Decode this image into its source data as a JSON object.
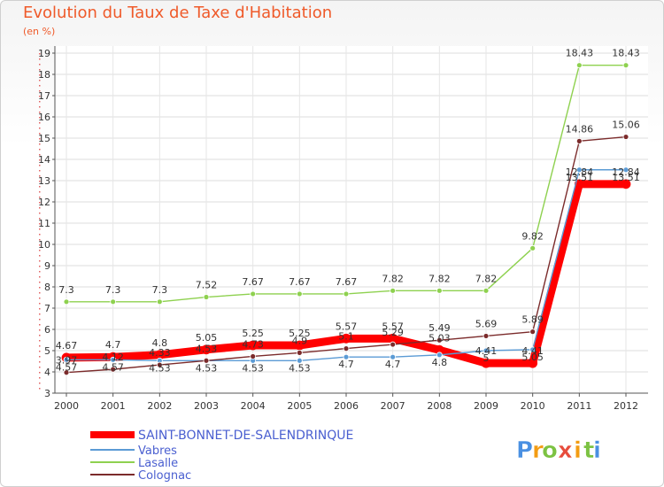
{
  "chart_data": {
    "type": "line",
    "title": "Evolution du Taux de Taxe d'Habitation",
    "subtitle": "(en %)",
    "xlabel": "",
    "ylabel": "",
    "ylim": [
      3,
      19
    ],
    "yticks": [
      "3",
      "4",
      "5",
      "6",
      "7",
      "8",
      "9",
      "10",
      "11",
      "12",
      "13",
      "14",
      "15",
      "16",
      "17",
      "18",
      "19"
    ],
    "x": [
      "2000",
      "2001",
      "2002",
      "2003",
      "2004",
      "2005",
      "2006",
      "2007",
      "2008",
      "2009",
      "2010",
      "2011",
      "2012"
    ],
    "grid": true,
    "legend_position": "bottom-left",
    "series": [
      {
        "name": "SAINT-BONNET-DE-SALENDRINQUE",
        "color": "#ff0000",
        "values": [
          4.67,
          4.7,
          4.8,
          5.05,
          5.25,
          5.25,
          5.57,
          5.57,
          5.03,
          4.41,
          4.41,
          12.84,
          12.84
        ],
        "labels": [
          "4.67",
          "4.7",
          "4.8",
          "5.05",
          "5.25",
          "5.25",
          "5.57",
          "5.57",
          "5.03",
          "4.41",
          "4.41",
          "12.84",
          "12.84"
        ]
      },
      {
        "name": "Vabres",
        "color": "#5b9bd5",
        "values": [
          4.57,
          4.57,
          4.53,
          4.53,
          4.53,
          4.53,
          4.7,
          4.7,
          4.8,
          5.0,
          5.05,
          13.51,
          13.51
        ],
        "labels": [
          "4.57",
          "4.57",
          "4.53",
          "4.53",
          "4.53",
          "4.53",
          "4.7",
          "4.7",
          "4.8",
          "5",
          "5.05",
          "13.51",
          "13.51"
        ]
      },
      {
        "name": "Lasalle",
        "color": "#8ed14f",
        "values": [
          7.3,
          7.3,
          7.3,
          7.52,
          7.67,
          7.67,
          7.67,
          7.82,
          7.82,
          7.82,
          9.82,
          18.43,
          18.43
        ],
        "labels": [
          "7.3",
          "7.3",
          "7.3",
          "7.52",
          "7.67",
          "7.67",
          "7.67",
          "7.82",
          "7.82",
          "7.82",
          "9.82",
          "18.43",
          "18.43"
        ]
      },
      {
        "name": "Colognac",
        "color": "#7b2b2b",
        "values": [
          3.97,
          4.12,
          4.33,
          4.53,
          4.73,
          4.9,
          5.1,
          5.29,
          5.49,
          5.69,
          5.89,
          14.86,
          15.06
        ],
        "labels": [
          "3.97",
          "4.12",
          "4.33",
          "4.53",
          "4.73",
          "4.9",
          "5.1",
          "5.29",
          "5.49",
          "5.69",
          "5.89",
          "14.86",
          "15.06"
        ]
      }
    ]
  },
  "brand": {
    "letters": [
      "P",
      "r",
      "o",
      "x",
      "i",
      "t",
      "i"
    ],
    "colors": [
      "#4a90e2",
      "#f39c12",
      "#7cc242",
      "#e74c3c",
      "#f39c12",
      "#7cc242",
      "#4a90e2"
    ]
  }
}
